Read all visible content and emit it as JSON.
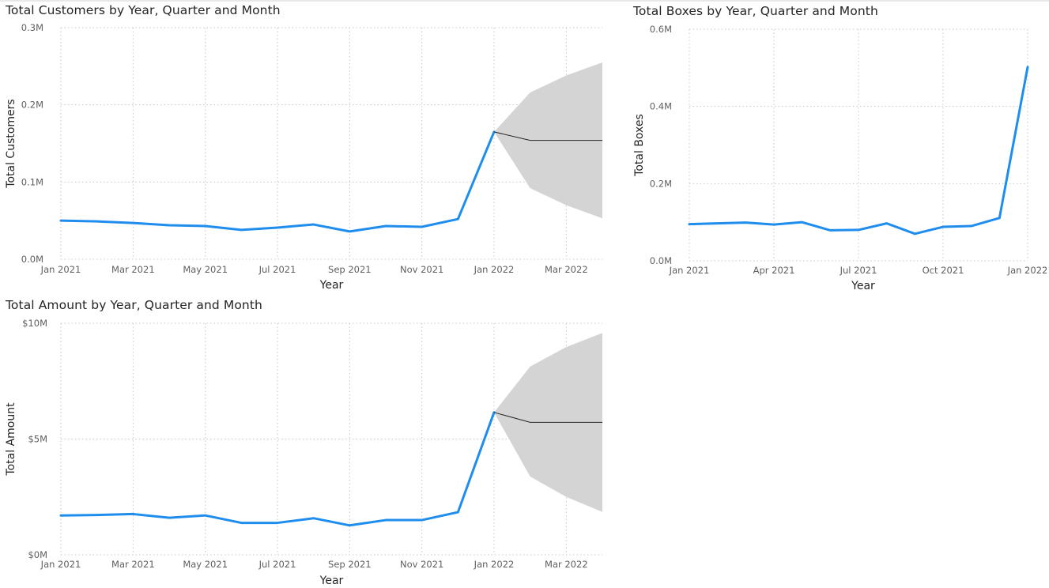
{
  "colors": {
    "line": "#1f8ded",
    "forecast": "#252423",
    "band": "#d4d4d4",
    "grid": "#c8c6c4",
    "tick": "#605e5c",
    "title": "#252423"
  },
  "chart_data": [
    {
      "id": "customers",
      "type": "line",
      "title": "Total Customers by Year, Quarter and Month",
      "xlabel": "Year",
      "ylabel": "Total Customers",
      "xlim": [
        0,
        15
      ],
      "ylim": [
        0,
        300000
      ],
      "xticks": [
        {
          "x": 0,
          "label": "Jan 2021"
        },
        {
          "x": 2,
          "label": "Mar 2021"
        },
        {
          "x": 4,
          "label": "May 2021"
        },
        {
          "x": 6,
          "label": "Jul 2021"
        },
        {
          "x": 8,
          "label": "Sep 2021"
        },
        {
          "x": 10,
          "label": "Nov 2021"
        },
        {
          "x": 12,
          "label": "Jan 2022"
        },
        {
          "x": 14,
          "label": "Mar 2022"
        }
      ],
      "yticks": [
        {
          "y": 0,
          "label": "0.0M"
        },
        {
          "y": 100000,
          "label": "0.1M"
        },
        {
          "y": 200000,
          "label": "0.2M"
        },
        {
          "y": 300000,
          "label": "0.3M"
        }
      ],
      "grid": true,
      "series": [
        {
          "x": [
            0,
            1,
            2,
            3,
            4,
            5,
            6,
            7,
            8,
            9,
            10,
            11,
            12
          ],
          "values": [
            50000,
            49000,
            47000,
            44000,
            43000,
            38000,
            41000,
            45000,
            36000,
            43000,
            42000,
            52000,
            165000
          ]
        }
      ],
      "forecast": {
        "x": [
          12,
          13,
          14,
          15
        ],
        "values": [
          165000,
          154000,
          154000,
          154000
        ],
        "upper": [
          165000,
          216000,
          238000,
          255000
        ],
        "lower": [
          165000,
          92000,
          70000,
          53000
        ]
      }
    },
    {
      "id": "boxes",
      "type": "line",
      "title": "Total Boxes by Year, Quarter and Month",
      "xlabel": "Year",
      "ylabel": "Total Boxes",
      "xlim": [
        0,
        12
      ],
      "ylim": [
        0,
        600000
      ],
      "xticks": [
        {
          "x": 0,
          "label": "Jan 2021"
        },
        {
          "x": 3,
          "label": "Apr 2021"
        },
        {
          "x": 6,
          "label": "Jul 2021"
        },
        {
          "x": 9,
          "label": "Oct 2021"
        },
        {
          "x": 12,
          "label": "Jan 2022"
        }
      ],
      "yticks": [
        {
          "y": 0,
          "label": "0.0M"
        },
        {
          "y": 200000,
          "label": "0.2M"
        },
        {
          "y": 400000,
          "label": "0.4M"
        },
        {
          "y": 600000,
          "label": "0.6M"
        }
      ],
      "grid": true,
      "series": [
        {
          "x": [
            0,
            1,
            2,
            3,
            4,
            5,
            6,
            7,
            8,
            9,
            10,
            11,
            12
          ],
          "values": [
            95000,
            97000,
            99000,
            94000,
            100000,
            79000,
            80000,
            97000,
            70000,
            88000,
            90000,
            111000,
            502000
          ]
        }
      ]
    },
    {
      "id": "amount",
      "type": "line",
      "title": "Total Amount by Year, Quarter and Month",
      "xlabel": "Year",
      "ylabel": "Total Amount",
      "xlim": [
        0,
        15
      ],
      "ylim": [
        0,
        10000000
      ],
      "xticks": [
        {
          "x": 0,
          "label": "Jan 2021"
        },
        {
          "x": 2,
          "label": "Mar 2021"
        },
        {
          "x": 4,
          "label": "May 2021"
        },
        {
          "x": 6,
          "label": "Jul 2021"
        },
        {
          "x": 8,
          "label": "Sep 2021"
        },
        {
          "x": 10,
          "label": "Nov 2021"
        },
        {
          "x": 12,
          "label": "Jan 2022"
        },
        {
          "x": 14,
          "label": "Mar 2022"
        }
      ],
      "yticks": [
        {
          "y": 0,
          "label": "$0M"
        },
        {
          "y": 5000000,
          "label": "$5M"
        },
        {
          "y": 10000000,
          "label": "$10M"
        }
      ],
      "grid": true,
      "series": [
        {
          "x": [
            0,
            1,
            2,
            3,
            4,
            5,
            6,
            7,
            8,
            9,
            10,
            11,
            12
          ],
          "values": [
            1700000,
            1720000,
            1760000,
            1600000,
            1700000,
            1380000,
            1380000,
            1580000,
            1270000,
            1500000,
            1500000,
            1840000,
            6150000
          ]
        }
      ],
      "forecast": {
        "x": [
          12,
          13,
          14,
          15
        ],
        "values": [
          6150000,
          5720000,
          5720000,
          5720000
        ],
        "upper": [
          6150000,
          8130000,
          8970000,
          9580000
        ],
        "lower": [
          6150000,
          3380000,
          2500000,
          1850000
        ]
      }
    }
  ]
}
